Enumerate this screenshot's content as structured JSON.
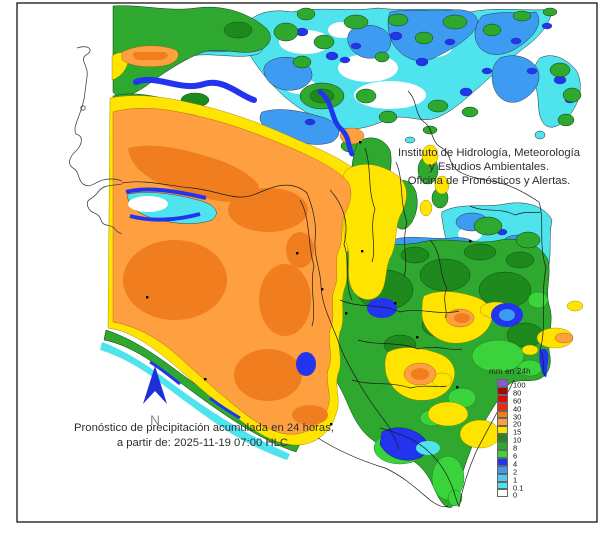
{
  "institute": {
    "line1": "Instituto de Hidrología, Meteorología",
    "line2": "y Estudios Ambientales.",
    "line3": "Oficina de Pronósticos y Alertas."
  },
  "caption": {
    "line1": "Pronóstico de precipitación acumulada en 24 horas,",
    "line2": "a partir de: 2025-11-19 07:00 HLC."
  },
  "north": {
    "label": "N",
    "arrow_color": "#1e2ed8"
  },
  "legend": {
    "title": "mm en 24h",
    "entries": [
      {
        "label": "100",
        "color": "#8a5ad2"
      },
      {
        "label": "80",
        "color": "#9e0a0a"
      },
      {
        "label": "60",
        "color": "#d60d0d"
      },
      {
        "label": "40",
        "color": "#f52310"
      },
      {
        "label": "30",
        "color": "#f07d1e"
      },
      {
        "label": "20",
        "color": "#ffa040"
      },
      {
        "label": "15",
        "color": "#ffe400"
      },
      {
        "label": "10",
        "color": "#1e8a1e"
      },
      {
        "label": "8",
        "color": "#2ea82e"
      },
      {
        "label": "6",
        "color": "#3bd33b"
      },
      {
        "label": "4",
        "color": "#2334ef"
      },
      {
        "label": "2",
        "color": "#3e9bf2"
      },
      {
        "label": "1",
        "color": "#55c9f2"
      },
      {
        "label": "0.1",
        "color": "#4fe3ee"
      },
      {
        "label": "0",
        "color": "#ffffff"
      }
    ]
  }
}
